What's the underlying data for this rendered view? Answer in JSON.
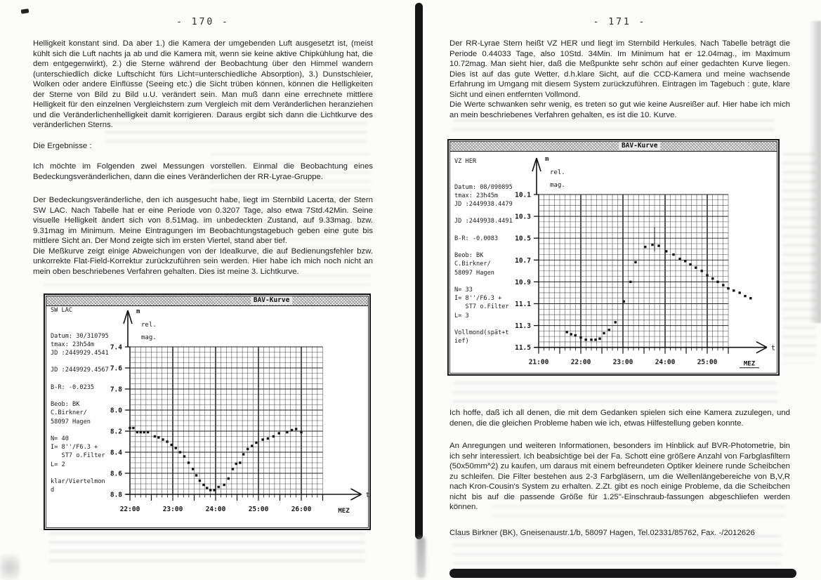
{
  "left_page": {
    "header": "- 170 -",
    "para1": "Helligkeit konstant sind. Da aber 1.) die Kamera der umgebenden Luft ausgesetzt ist, (meist kühlt sich die Luft nachts ja ab und die Kamera mit, wenn sie keine aktive Chipkühlung hat, die dem entgegenwirkt), 2.) die Sterne während der Beobachtung über den Himmel wandern (unterschiedlich dicke Luftschicht fürs Licht=unterschiedliche Absorption), 3.) Dunstschleier, Wolken oder andere Einflüsse (Seeing etc.) die Sicht trüben können, können die Helligkeiten der Sterne von Bild zu Bild u.U. verändert sein. Man muß dann eine errechnete mittlere Helligkeit für den einzelnen Vergleichstern zum Vergleich mit dem Veränderlichen heranziehen und die Veränderlichenhelligkeit damit korrigieren. Daraus ergibt sich dann die Lichtkurve des veränderlichen Sterns.",
    "para2": "Die Ergebnisse :",
    "para3": "Ich möchte im Folgenden zwei Messungen vorstellen. Einmal die Beobachtung eines Bedeckungsveränderlichen, dann die eines Veränderlichen der RR-Lyrae-Gruppe.",
    "para4": "Der Bedeckungsveränderliche, den ich ausgesucht habe, liegt im Sternbild Lacerta, der Stern SW LAC. Nach Tabelle hat er eine Periode von 0.3207 Tage, also etwa 7Std.42Min. Seine visuelle Helligkeit ändert sich von 8.51Mag. im unbedeckten Zustand, auf 9.33mag. bzw. 9.31mag im Minimum. Meine Eintragungen im Beobachtungstagebuch geben eine gute bis mittlere Sicht an. Der Mond zeigte sich im ersten Viertel, stand aber tief.",
    "para5": "Die Meßkurve zeigt einige Abweichungen von der Idealkurve, die auf Bedienungsfehler bzw. unkorrekte Flat-Field-Korrektur zurückzuführen sein werden. Hier habe ich mich noch nicht an mein oben beschriebenes Verfahren gehalten. Dies ist meine 3. Lichtkurve."
  },
  "right_page": {
    "header": "- 171 -",
    "para1": "Der RR-Lyrae Stern heißt VZ HER und liegt im Sternbild Herkules. Nach Tabelle beträgt die Periode 0.44033 Tage, also 10Std. 34Min. Im Minimum hat er 12.04mag., im Maximum 10.72mag. Man sieht hier, daß die Meßpunkte sehr schön auf einer gedachten Kurve liegen. Dies ist auf das gute Wetter, d.h.klare Sicht, auf die CCD-Kamera und meine wachsende Erfahrung im Umgang mit diesem System zurückzuführen. Eintragen im Tagebuch : gute, klare Sicht und einen entfernten Vollmond.",
    "para2": "Die Werte schwanken sehr wenig, es treten so gut wie keine Ausreißer auf. Hier habe ich mich an mein beschriebenes Verfahren gehalten, es ist die 10. Kurve.",
    "para3": "Ich hoffe, daß ich all denen, die mit dem Gedanken spielen sich eine Kamera zuzulegen, und denen, die die gleichen Probleme haben wie ich, etwas Hilfestellung geben konnte.",
    "para4": "An Anregungen und weiteren Informationen, besonders im Hinblick auf BVR-Photometrie, bin ich sehr interessiert. Ich beabsichtige bei der Fa. Schott eine größere Anzahl von Farbglasfiltern (50x50mm^2) zu kaufen, um daraus mit einem befreundeten Optiker kleinere runde Scheibchen zu schleifen. Die Filter bestehen aus 2-3 Farbgläsern, um die Wellenlängebereiche von B,V,R nach Kron-Cousin's System zu erhalten. Z.Zt. gibt es noch einige Probleme, da die Scheibchen nicht bis auf die passende Größe für 1.25\"-Einschraub-fassungen abgeschliefen werden können.",
    "contact": "Claus Birkner (BK), Gneisenaustr.1/b, 58097 Hagen, Tel.02331/85762, Fax. -/2012626"
  },
  "chart_data": [
    {
      "type": "scatter",
      "title": "BAV-Kurve",
      "star": "SW LAC",
      "panel_lines": [
        "SW LAC",
        "",
        "",
        "Datum: 30/310795",
        "tmax: 23h54m",
        "JD :2449929.4541",
        "",
        "JD :2449929.4567",
        "",
        "B-R: -0.0235",
        "",
        "Beob: BK",
        "C.Birkner/",
        "58097 Hagen",
        "",
        "N= 40",
        "I= 8''/F6.3 +",
        "   ST7 o.Filter",
        "L= 2",
        "",
        "klar/Viertelmon",
        "d"
      ],
      "x_start": 22,
      "x_end": 26.5,
      "x_tick_hours": [
        22,
        23,
        24,
        25,
        26
      ],
      "x_tick_labels": [
        "22:00",
        "23:00",
        "24:00",
        "25:00",
        "26:00"
      ],
      "x_axis_label": "t",
      "x_unit": "MEZ",
      "mez_underline": false,
      "y_axis_label_lines": [
        "m",
        "rel.",
        "mag."
      ],
      "ylim": [
        7.4,
        8.8
      ],
      "y_ticks": [
        7.4,
        7.6,
        7.8,
        8.0,
        8.2,
        8.4,
        8.6,
        8.8
      ],
      "tmax_marker": null,
      "points": [
        [
          22.0,
          8.17
        ],
        [
          22.08,
          8.17
        ],
        [
          22.17,
          8.21
        ],
        [
          22.25,
          8.21
        ],
        [
          22.33,
          8.21
        ],
        [
          22.42,
          8.21
        ],
        [
          22.58,
          8.25
        ],
        [
          22.67,
          8.26
        ],
        [
          22.77,
          8.28
        ],
        [
          22.87,
          8.3
        ],
        [
          22.97,
          8.33
        ],
        [
          23.07,
          8.36
        ],
        [
          23.17,
          8.4
        ],
        [
          23.27,
          8.44
        ],
        [
          23.37,
          8.5
        ],
        [
          23.47,
          8.56
        ],
        [
          23.55,
          8.62
        ],
        [
          23.63,
          8.67
        ],
        [
          23.72,
          8.71
        ],
        [
          23.8,
          8.74
        ],
        [
          23.88,
          8.76
        ],
        [
          23.97,
          8.76
        ],
        [
          24.07,
          8.73
        ],
        [
          24.2,
          8.71
        ],
        [
          24.3,
          8.65
        ],
        [
          24.4,
          8.56
        ],
        [
          24.48,
          8.51
        ],
        [
          24.57,
          8.5
        ],
        [
          24.65,
          8.42
        ],
        [
          24.75,
          8.37
        ],
        [
          24.85,
          8.34
        ],
        [
          24.95,
          8.31
        ],
        [
          25.1,
          8.28
        ],
        [
          25.22,
          8.27
        ],
        [
          25.35,
          8.25
        ],
        [
          25.48,
          8.22
        ],
        [
          25.67,
          8.21
        ],
        [
          25.78,
          8.19
        ],
        [
          25.88,
          8.18
        ],
        [
          26.0,
          8.21
        ]
      ]
    },
    {
      "type": "scatter",
      "title": "BAV-Kurve",
      "star": "VZ HER",
      "panel_lines": [
        "VZ HER",
        "",
        "",
        "Datum: 08/090895",
        "tmax: 23h45m",
        "JD :2449938.4479",
        "",
        "JD :2449938.4491",
        "",
        "B-R: -0.0083",
        "",
        "Beob: BK",
        "C.Birkner/",
        "58097 Hagen",
        "",
        "N= 33",
        "I= 8''/F6.3 +",
        "   ST7 o.Filter",
        "L= 3",
        "",
        "Vollmond(spät+t",
        "ief)"
      ],
      "x_start": 21,
      "x_end": 25.5,
      "x_tick_hours": [
        21,
        22,
        23,
        24,
        25
      ],
      "x_tick_labels": [
        "21:00",
        "22:00",
        "23:00",
        "24:00",
        "25:00"
      ],
      "x_axis_label": "t",
      "x_unit": "MEZ",
      "mez_underline": true,
      "y_axis_label_lines": [
        "m",
        "rel.",
        "mag."
      ],
      "ylim": [
        10.1,
        11.5
      ],
      "y_ticks": [
        10.1,
        10.3,
        10.5,
        10.7,
        10.9,
        11.1,
        11.3,
        11.5
      ],
      "tmax_marker": {
        "t": 23.75,
        "mag_from": 10.4,
        "mag_to": 10.62
      },
      "points": [
        [
          21.67,
          11.36
        ],
        [
          21.77,
          11.38
        ],
        [
          21.87,
          11.39
        ],
        [
          22.0,
          11.41
        ],
        [
          22.12,
          11.43
        ],
        [
          22.25,
          11.43
        ],
        [
          22.35,
          11.43
        ],
        [
          22.45,
          11.42
        ],
        [
          22.55,
          11.37
        ],
        [
          22.67,
          11.34
        ],
        [
          22.82,
          11.27
        ],
        [
          23.02,
          11.08
        ],
        [
          23.18,
          10.9
        ],
        [
          23.3,
          10.72
        ],
        [
          23.53,
          10.58
        ],
        [
          23.7,
          10.56
        ],
        [
          23.85,
          10.57
        ],
        [
          24.03,
          10.62
        ],
        [
          24.2,
          10.65
        ],
        [
          24.35,
          10.69
        ],
        [
          24.48,
          10.71
        ],
        [
          24.6,
          10.74
        ],
        [
          24.73,
          10.77
        ],
        [
          24.87,
          10.8
        ],
        [
          25.0,
          10.84
        ],
        [
          25.13,
          10.87
        ],
        [
          25.25,
          10.9
        ],
        [
          25.38,
          10.93
        ],
        [
          25.5,
          10.96
        ],
        [
          25.63,
          10.98
        ],
        [
          25.77,
          11.0
        ],
        [
          25.9,
          11.03
        ],
        [
          26.03,
          11.05
        ]
      ]
    }
  ]
}
